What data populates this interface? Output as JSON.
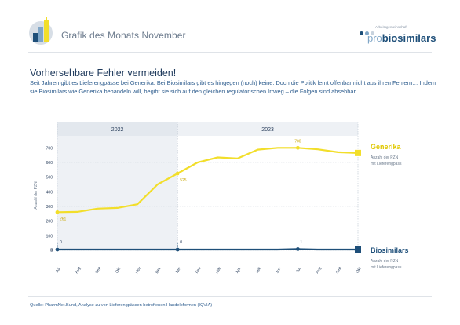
{
  "header": {
    "title": "Grafik des Monats November",
    "brand_small": "Arbeitsgemeinschaft",
    "brand_pro": "pro",
    "brand_bio": "biosimilars",
    "brand_colors": [
      "#1e4f79",
      "#7fa6c7",
      "#c8d3de"
    ]
  },
  "headline": "Vorhersehbare Fehler vermeiden!",
  "intro": "Seit Jahren gibt es Lieferengpässe bei Generika. Bei Biosimilars gibt es hingegen (noch) keine. Doch die Politik lernt offenbar nicht aus ihren Fehlern… Indem sie Biosimilars wie Generika behandeln will, begibt sie sich auf den gleichen regulatorischen Irrweg – die Folgen sind absehbar.",
  "source": "Quelle:   PharmNet.Bund, Analyse zu von Lieferengpässen betroffenen Handelsformen (IQVIA)",
  "chart_data": {
    "type": "line",
    "periods": [
      {
        "label": "2022",
        "from": 0,
        "to": 6,
        "shaded": true
      },
      {
        "label": "2023",
        "from": 6,
        "to": 15,
        "shaded": false
      }
    ],
    "x": [
      "Jul",
      "Aug",
      "Sep",
      "Okt",
      "Nov",
      "Dez",
      "Jan",
      "Feb",
      "Mär",
      "Apr",
      "Mai",
      "Jun",
      "Jul",
      "Aug",
      "Sep",
      "Okt"
    ],
    "upper_panel": {
      "ylabel": "Anzahl der PZN",
      "yticks": [
        0,
        100,
        200,
        300,
        400,
        500,
        600,
        700
      ],
      "ylim": [
        0,
        750
      ],
      "series": [
        {
          "name": "Generika",
          "sublabel_line1": "Anzahl der PZN",
          "sublabel_line2": "mit Lieferengpass",
          "color": "#f2de2a",
          "values": [
            261,
            263,
            285,
            290,
            315,
            450,
            525,
            600,
            635,
            628,
            688,
            700,
            700,
            690,
            670,
            665
          ],
          "annotations": [
            {
              "index": 0,
              "label": "261"
            },
            {
              "index": 6,
              "label": "525"
            },
            {
              "index": 12,
              "label": "700"
            }
          ],
          "markers": [
            0,
            6,
            12
          ]
        }
      ]
    },
    "lower_panel": {
      "ytick": "0",
      "series": [
        {
          "name": "Biosimilars",
          "sublabel_line1": "Anzahl der PZN",
          "sublabel_line2": "mit Lieferengpass",
          "color": "#1e4f79",
          "values": [
            0,
            0,
            0,
            0,
            0,
            0,
            0,
            0,
            0,
            0,
            0,
            0,
            1,
            0,
            0,
            0
          ],
          "annotations": [
            {
              "index": 0,
              "label": "0"
            },
            {
              "index": 6,
              "label": "0"
            },
            {
              "index": 12,
              "label": "1"
            }
          ],
          "markers": [
            0,
            6,
            12
          ]
        }
      ]
    }
  }
}
